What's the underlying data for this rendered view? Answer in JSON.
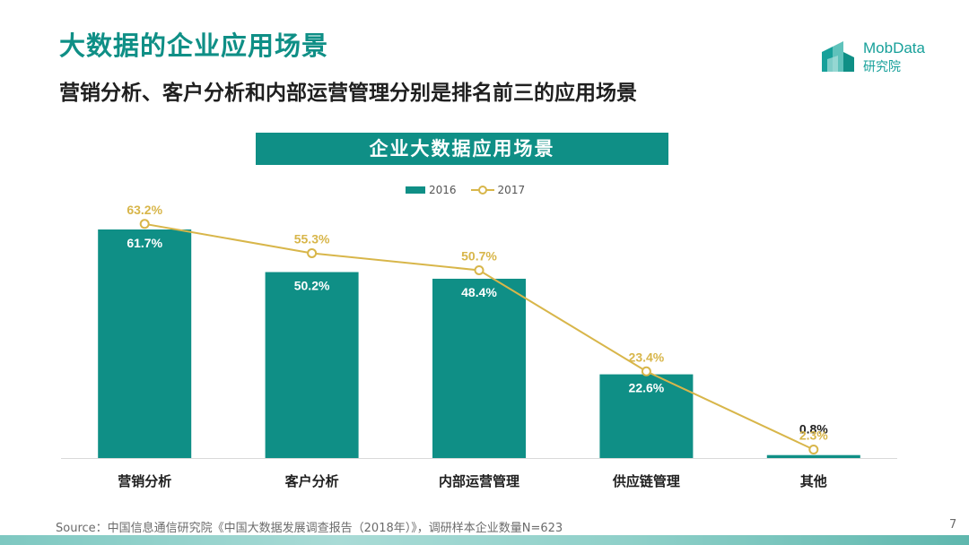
{
  "header": {
    "title": "大数据的企业应用场景",
    "subtitle": "营销分析、客户分析和内部运营管理分别是排名前三的应用场景"
  },
  "logo": {
    "name": "MobData",
    "sub": "研究院",
    "icon": "building-blocks-icon"
  },
  "colors": {
    "accent": "#0f8f86",
    "line": "#d8b64a",
    "label_dark": "#1f1f1f"
  },
  "chart_data": {
    "type": "bar",
    "title": "企业大数据应用场景",
    "categories": [
      "营销分析",
      "客户分析",
      "内部运营管理",
      "供应链管理",
      "其他"
    ],
    "series": [
      {
        "name": "2016",
        "type": "bar",
        "values": [
          61.7,
          50.2,
          48.4,
          22.6,
          0.8
        ],
        "labels": [
          "61.7%",
          "50.2%",
          "48.4%",
          "22.6%",
          "0.8%"
        ]
      },
      {
        "name": "2017",
        "type": "line",
        "values": [
          63.2,
          55.3,
          50.7,
          23.4,
          2.3
        ],
        "labels": [
          "63.2%",
          "55.3%",
          "50.7%",
          "23.4%",
          "2.3%"
        ]
      }
    ],
    "ylim": [
      0,
      70
    ],
    "legend": "top-center",
    "grid": false
  },
  "footer": {
    "source": "Source：中国信息通信研究院《中国大数据发展调查报告（2018年）》，调研样本企业数量N=623",
    "page": "7"
  }
}
